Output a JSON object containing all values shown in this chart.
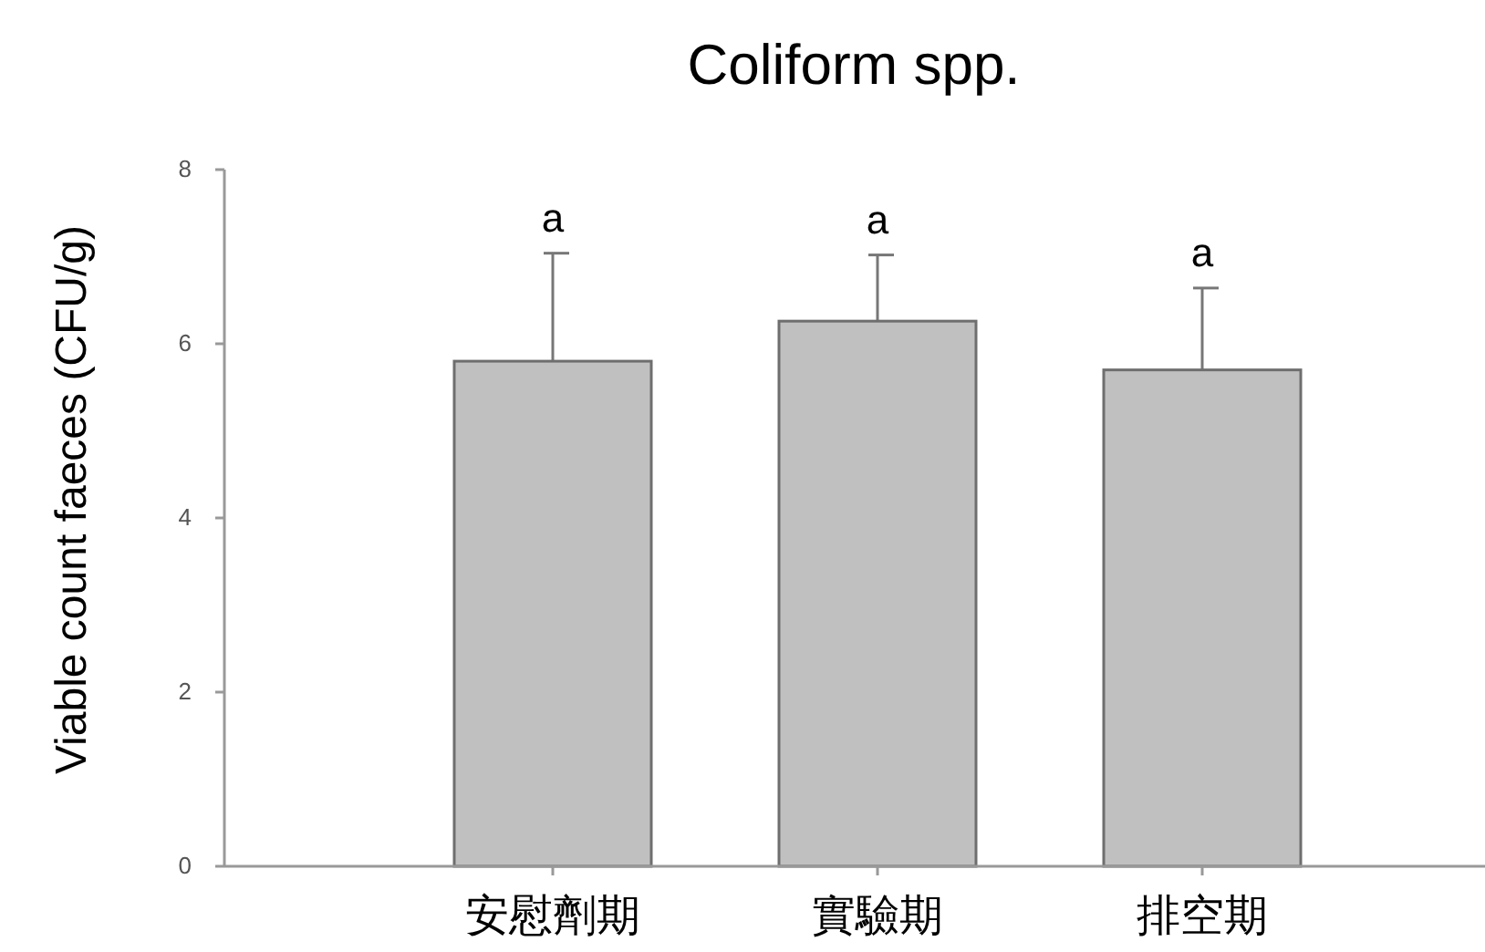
{
  "chart_data": {
    "type": "bar",
    "title": "Coliform spp.",
    "ylabel": "Viable count faeces (CFU/g)",
    "categories": [
      "安慰劑期",
      "實驗期",
      "排空期"
    ],
    "values": [
      5.8,
      6.26,
      5.7
    ],
    "errors": [
      1.24,
      0.76,
      0.94
    ],
    "color": "#c0c0c0",
    "ylim": [
      0,
      8
    ],
    "yticks": [
      0,
      2,
      4,
      6,
      8
    ],
    "grid": false,
    "annotations": [
      {
        "text": "a",
        "x": "安慰劑期",
        "y": 7.04
      },
      {
        "text": "a",
        "x": "實驗期",
        "y": 7.02
      },
      {
        "text": "a",
        "x": "排空期",
        "y": 6.64
      }
    ]
  }
}
